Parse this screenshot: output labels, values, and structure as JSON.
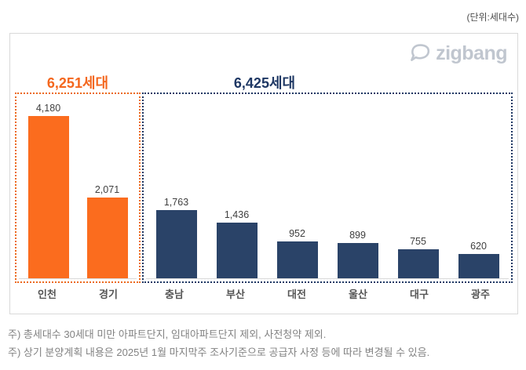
{
  "unit_label": "(단위:세대수)",
  "logo": {
    "text": "zigbang",
    "color": "#c0c6cf"
  },
  "notes": [
    "주) 총세대수 30세대 미만 아파트단지, 임대아파트단지 제외, 사전청약 제외.",
    "주) 상기 분양계획 내용은 2025년 1월 마지막주 조사기준으로 공급자 사정 등에 따라 변경될 수 있음."
  ],
  "chart_data": {
    "type": "bar",
    "title": "",
    "xlabel": "",
    "ylabel": "",
    "unit": "세대수",
    "categories": [
      "인천",
      "경기",
      "충남",
      "부산",
      "대전",
      "울산",
      "대구",
      "광주"
    ],
    "values": [
      4180,
      2071,
      1763,
      1436,
      952,
      899,
      755,
      620
    ],
    "value_labels": [
      "4,180",
      "2,071",
      "1,763",
      "1,436",
      "952",
      "899",
      "755",
      "620"
    ],
    "groups": [
      {
        "label": "6,251세대",
        "total": 6251,
        "color": "#fb6c1e",
        "border_color": "#ec6a1e",
        "category_count": 2
      },
      {
        "label": "6,425세대",
        "total": 6425,
        "color": "#2a4368",
        "border_color": "#1f3864",
        "category_count": 6
      }
    ],
    "ylim": [
      0,
      4500
    ],
    "grid": false,
    "legend": "none",
    "baseline_color": "#d9d9d9",
    "panel_border_color": "#d9d9d9"
  }
}
